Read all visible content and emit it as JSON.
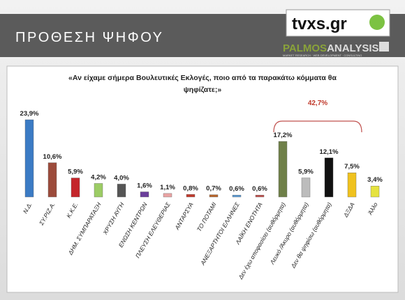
{
  "header": {
    "title": "ΠΡΟΘΕΣΗ ΨΗΦΟΥ",
    "logo_main": "tvxs.gr",
    "logo_brand_1": "PALMOS",
    "logo_brand_2": "ANALYSIS",
    "logo_tagline": "MARKET RESEARCH · WEB DEVELOPMENT · CONSULTING"
  },
  "chart_data": {
    "type": "bar",
    "title": "«Αν είχαμε σήμερα Βουλευτικές Εκλογές, ποιο από τα παρακάτω κόμματα θα ψηφίζατε;»",
    "annotation": "42,7%",
    "categories": [
      "Ν.Δ.",
      "ΣΥ.ΡΙΖ.Α.",
      "Κ.Κ.Ε.",
      "ΔΗΜ. ΣΥΜΠΑΡΑΤΑΞΗ",
      "ΧΡΥΣΗ ΑΥΓΗ",
      "ΕΝΩΣΗ ΚΕΝΤΡΩΝ",
      "ΠΛΕΥΣΗ ΕΛΕΥΘΕΡΙΑΣ",
      "ΑΝΤΑΡΣΥΑ",
      "ΤΟ ΠΟΤΑΜΙ",
      "ΑΝΕΞΑΡΤΗΤΟΙ ΕΛΛΗΝΕΣ",
      "ΛΑΪΚΗ ΕΝΟΤΗΤΑ",
      "Δεν έχω αποφασίσει (αυθόρμητα)",
      "Λευκό /Άκυρο (αυθόρμητα)",
      "Δεν θα ψηφίσω (αυθόρμητα)",
      "ΔΞΔΑ",
      "Άλλο"
    ],
    "values": [
      23.9,
      10.6,
      5.9,
      4.2,
      4.0,
      1.6,
      1.1,
      0.8,
      0.7,
      0.6,
      0.6,
      17.2,
      5.9,
      12.1,
      7.5,
      3.4
    ],
    "value_labels": [
      "23,9%",
      "10,6%",
      "5,9%",
      "4,2%",
      "4,0%",
      "1,6%",
      "1,1%",
      "0,8%",
      "0,7%",
      "0,6%",
      "0,6%",
      "17,2%",
      "5,9%",
      "12,1%",
      "7,5%",
      "3,4%"
    ],
    "colors": [
      "#3b7bc4",
      "#9c4b3b",
      "#c4262b",
      "#9ccc65",
      "#555555",
      "#6b3f9b",
      "#e9a3a3",
      "#c23a2c",
      "#b5652c",
      "#5b9bd5",
      "#c0504d",
      "#6f8049",
      "#bcbcbc",
      "#111111",
      "#f0c21e",
      "#e6e33f"
    ]
  }
}
